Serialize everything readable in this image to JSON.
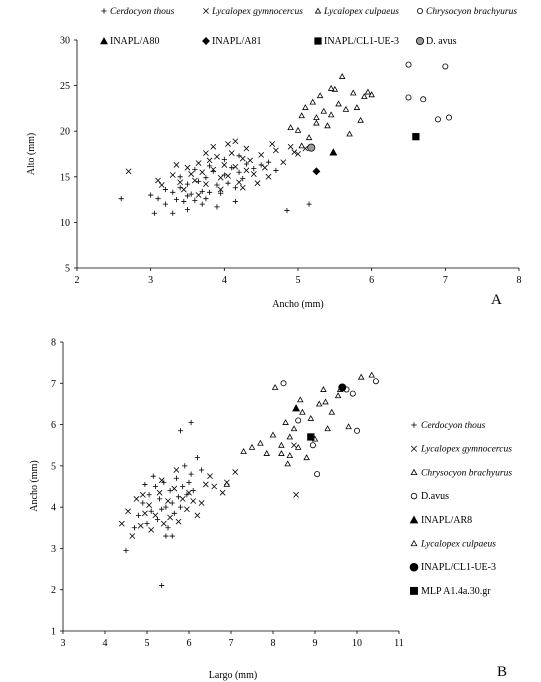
{
  "chart_data": [
    {
      "type": "scatter",
      "panel_label": "A",
      "title": "",
      "xlabel": "Ancho (mm)",
      "ylabel": "Alto (mm)",
      "xlim": [
        2,
        8
      ],
      "ylim": [
        5,
        30
      ],
      "xticks": [
        2,
        3,
        4,
        5,
        6,
        7,
        8
      ],
      "yticks": [
        5,
        10,
        15,
        20,
        25,
        30
      ],
      "grid": false,
      "legend_position": "top",
      "series": [
        {
          "name": "Cerdocyon thous",
          "marker": "plus",
          "points": [
            [
              2.6,
              12.6
            ],
            [
              3.0,
              13.0
            ],
            [
              3.05,
              11.0
            ],
            [
              3.1,
              12.6
            ],
            [
              3.2,
              12.0
            ],
            [
              3.2,
              13.6
            ],
            [
              3.3,
              11.0
            ],
            [
              3.35,
              12.5
            ],
            [
              3.4,
              13.8
            ],
            [
              3.45,
              12.3
            ],
            [
              3.5,
              11.4
            ],
            [
              3.5,
              14.2
            ],
            [
              3.55,
              13.1
            ],
            [
              3.6,
              12.4
            ],
            [
              3.65,
              14.5
            ],
            [
              3.7,
              13.4
            ],
            [
              3.7,
              12.0
            ],
            [
              3.75,
              14.9
            ],
            [
              3.8,
              13.3
            ],
            [
              3.85,
              15.6
            ],
            [
              3.9,
              14.1
            ],
            [
              3.95,
              13.2
            ],
            [
              4.0,
              15.2
            ],
            [
              4.05,
              14.3
            ],
            [
              4.1,
              16.0
            ],
            [
              4.15,
              13.8
            ],
            [
              4.2,
              15.5
            ],
            [
              4.25,
              14.8
            ],
            [
              4.3,
              16.4
            ],
            [
              3.4,
              15.0
            ],
            [
              3.6,
              15.8
            ],
            [
              3.8,
              16.2
            ],
            [
              4.0,
              16.9
            ],
            [
              4.2,
              17.3
            ],
            [
              3.9,
              11.7
            ],
            [
              4.15,
              12.3
            ],
            [
              3.3,
              13.3
            ],
            [
              3.5,
              12.9
            ],
            [
              3.75,
              12.6
            ],
            [
              4.4,
              15.9
            ],
            [
              4.5,
              16.3
            ],
            [
              4.6,
              16.6
            ],
            [
              4.7,
              15.7
            ],
            [
              4.85,
              11.3
            ],
            [
              5.15,
              12.0
            ]
          ]
        },
        {
          "name": "Lycalopex gymnocercus",
          "marker": "x",
          "points": [
            [
              2.7,
              15.6
            ],
            [
              3.1,
              14.6
            ],
            [
              3.3,
              15.2
            ],
            [
              3.4,
              14.4
            ],
            [
              3.5,
              16.0
            ],
            [
              3.55,
              15.3
            ],
            [
              3.6,
              14.6
            ],
            [
              3.65,
              16.5
            ],
            [
              3.7,
              15.5
            ],
            [
              3.75,
              14.2
            ],
            [
              3.8,
              16.8
            ],
            [
              3.85,
              15.8
            ],
            [
              3.9,
              17.2
            ],
            [
              3.95,
              14.9
            ],
            [
              4.0,
              16.3
            ],
            [
              4.05,
              15.1
            ],
            [
              4.1,
              17.6
            ],
            [
              4.15,
              16.1
            ],
            [
              4.2,
              14.4
            ],
            [
              4.25,
              17.0
            ],
            [
              4.3,
              15.7
            ],
            [
              4.35,
              16.8
            ],
            [
              4.4,
              15.3
            ],
            [
              4.5,
              17.4
            ],
            [
              4.55,
              16.0
            ],
            [
              4.6,
              15.0
            ],
            [
              4.7,
              17.9
            ],
            [
              4.8,
              16.6
            ],
            [
              4.9,
              18.3
            ],
            [
              5.0,
              17.5
            ],
            [
              5.1,
              18.1
            ],
            [
              3.45,
              13.6
            ],
            [
              3.65,
              13.0
            ],
            [
              3.95,
              13.6
            ],
            [
              4.25,
              13.8
            ],
            [
              4.45,
              14.3
            ],
            [
              3.85,
              18.3
            ],
            [
              4.05,
              18.6
            ],
            [
              4.3,
              18.1
            ],
            [
              3.35,
              16.3
            ],
            [
              3.15,
              14.1
            ],
            [
              4.65,
              18.6
            ],
            [
              4.95,
              17.7
            ],
            [
              3.75,
              17.6
            ],
            [
              4.15,
              18.9
            ]
          ]
        },
        {
          "name": "Lycalopex culpaeus",
          "marker": "triangle-open",
          "points": [
            [
              4.9,
              20.4
            ],
            [
              5.0,
              20.1
            ],
            [
              5.05,
              21.7
            ],
            [
              5.1,
              22.6
            ],
            [
              5.15,
              19.3
            ],
            [
              5.2,
              23.2
            ],
            [
              5.25,
              21.5
            ],
            [
              5.3,
              23.9
            ],
            [
              5.35,
              22.2
            ],
            [
              5.4,
              20.6
            ],
            [
              5.45,
              21.8
            ],
            [
              5.5,
              24.6
            ],
            [
              5.55,
              23.0
            ],
            [
              5.6,
              26.0
            ],
            [
              5.65,
              22.4
            ],
            [
              5.7,
              19.7
            ],
            [
              5.75,
              24.2
            ],
            [
              5.8,
              22.6
            ],
            [
              5.85,
              21.2
            ],
            [
              5.9,
              23.8
            ],
            [
              5.95,
              24.3
            ],
            [
              6.0,
              24.0
            ],
            [
              5.05,
              18.4
            ],
            [
              5.25,
              20.9
            ],
            [
              5.45,
              24.7
            ]
          ]
        },
        {
          "name": "Chrysocyon brachyurus",
          "marker": "circle-open",
          "points": [
            [
              6.5,
              27.3
            ],
            [
              7.0,
              27.1
            ],
            [
              6.5,
              23.7
            ],
            [
              6.7,
              23.5
            ],
            [
              6.9,
              21.3
            ],
            [
              7.05,
              21.5
            ]
          ]
        },
        {
          "name": "INAPL/A80",
          "marker": "triangle-filled",
          "points": [
            [
              5.48,
              17.7
            ]
          ]
        },
        {
          "name": "INAPL/A81",
          "marker": "diamond-filled",
          "points": [
            [
              5.25,
              15.6
            ]
          ]
        },
        {
          "name": "INAPL/CL1-UE-3",
          "marker": "square-filled",
          "points": [
            [
              6.6,
              19.4
            ]
          ]
        },
        {
          "name": "D. avus",
          "marker": "circle-gray",
          "points": [
            [
              5.18,
              18.2
            ]
          ]
        }
      ]
    },
    {
      "type": "scatter",
      "panel_label": "B",
      "title": "",
      "xlabel": "Largo (mm)",
      "ylabel": "Ancho (mm)",
      "xlim": [
        3,
        11
      ],
      "ylim": [
        1,
        8
      ],
      "xticks": [
        3,
        4,
        5,
        6,
        7,
        8,
        9,
        10,
        11
      ],
      "yticks": [
        1,
        2,
        3,
        4,
        5,
        6,
        7,
        8
      ],
      "grid": false,
      "legend_position": "right",
      "series": [
        {
          "name": "Cerdocyon thous",
          "marker": "plus",
          "points": [
            [
              4.5,
              2.95
            ],
            [
              4.7,
              3.5
            ],
            [
              4.8,
              3.8
            ],
            [
              4.9,
              4.1
            ],
            [
              5.0,
              3.6
            ],
            [
              5.05,
              4.3
            ],
            [
              5.1,
              3.9
            ],
            [
              5.2,
              4.5
            ],
            [
              5.25,
              3.7
            ],
            [
              5.3,
              4.2
            ],
            [
              5.35,
              3.95
            ],
            [
              5.4,
              4.6
            ],
            [
              5.45,
              4.0
            ],
            [
              5.5,
              3.5
            ],
            [
              5.55,
              4.4
            ],
            [
              5.6,
              4.1
            ],
            [
              5.65,
              3.85
            ],
            [
              5.7,
              4.7
            ],
            [
              5.75,
              4.25
            ],
            [
              5.8,
              4.0
            ],
            [
              5.85,
              4.5
            ],
            [
              5.9,
              5.0
            ],
            [
              5.95,
              4.3
            ],
            [
              6.0,
              4.6
            ],
            [
              6.05,
              4.8
            ],
            [
              6.1,
              4.4
            ],
            [
              6.2,
              5.2
            ],
            [
              6.3,
              4.9
            ],
            [
              5.35,
              2.1
            ],
            [
              5.8,
              5.85
            ],
            [
              6.05,
              6.05
            ],
            [
              5.15,
              4.75
            ],
            [
              4.95,
              4.55
            ],
            [
              5.45,
              3.3
            ],
            [
              5.6,
              3.3
            ]
          ]
        },
        {
          "name": "Lycalopex gymnocercus",
          "marker": "x",
          "points": [
            [
              4.4,
              3.6
            ],
            [
              4.55,
              3.9
            ],
            [
              4.65,
              3.3
            ],
            [
              4.75,
              4.2
            ],
            [
              4.85,
              3.55
            ],
            [
              4.95,
              3.85
            ],
            [
              5.05,
              4.05
            ],
            [
              5.1,
              3.45
            ],
            [
              5.2,
              3.8
            ],
            [
              5.3,
              4.35
            ],
            [
              5.4,
              3.6
            ],
            [
              5.5,
              4.15
            ],
            [
              5.55,
              3.75
            ],
            [
              5.65,
              4.45
            ],
            [
              5.75,
              3.65
            ],
            [
              5.85,
              4.2
            ],
            [
              5.95,
              3.95
            ],
            [
              6.0,
              4.35
            ],
            [
              6.1,
              4.15
            ],
            [
              6.2,
              3.8
            ],
            [
              6.3,
              4.1
            ],
            [
              6.4,
              4.55
            ],
            [
              6.6,
              4.5
            ],
            [
              6.8,
              4.35
            ],
            [
              7.1,
              4.85
            ],
            [
              6.5,
              4.75
            ],
            [
              5.35,
              4.65
            ],
            [
              4.9,
              4.3
            ],
            [
              5.7,
              4.9
            ],
            [
              6.9,
              4.6
            ],
            [
              8.55,
              4.3
            ],
            [
              8.5,
              5.5
            ]
          ]
        },
        {
          "name": "Chrysocyon brachyurus",
          "marker": "triangle-open",
          "points": [
            [
              7.5,
              5.45
            ],
            [
              7.7,
              5.55
            ],
            [
              7.85,
              5.3
            ],
            [
              8.0,
              5.75
            ],
            [
              8.2,
              5.5
            ],
            [
              8.3,
              6.05
            ],
            [
              8.4,
              5.25
            ],
            [
              8.5,
              5.9
            ],
            [
              8.6,
              5.45
            ],
            [
              8.7,
              6.3
            ],
            [
              8.8,
              5.2
            ],
            [
              8.9,
              6.15
            ],
            [
              9.0,
              5.65
            ],
            [
              9.1,
              6.5
            ],
            [
              9.2,
              6.85
            ],
            [
              9.3,
              5.9
            ],
            [
              9.4,
              6.3
            ],
            [
              9.6,
              6.85
            ],
            [
              9.8,
              5.95
            ],
            [
              10.1,
              7.15
            ],
            [
              10.35,
              7.2
            ],
            [
              7.3,
              5.35
            ],
            [
              6.9,
              4.55
            ],
            [
              8.05,
              6.9
            ],
            [
              8.35,
              5.05
            ]
          ]
        },
        {
          "name": "D.avus",
          "marker": "circle-open",
          "points": [
            [
              8.25,
              7.0
            ],
            [
              8.6,
              6.1
            ],
            [
              8.95,
              5.5
            ],
            [
              9.05,
              4.8
            ],
            [
              9.75,
              6.85
            ],
            [
              10.0,
              5.85
            ],
            [
              10.45,
              7.05
            ],
            [
              9.9,
              6.75
            ]
          ]
        },
        {
          "name": "INAPL/AR8",
          "marker": "triangle-filled",
          "points": [
            [
              8.55,
              6.4
            ]
          ]
        },
        {
          "name": "Lycalopex culpaeus",
          "marker": "triangle-open",
          "points": [
            [
              8.2,
              5.3
            ],
            [
              8.4,
              5.7
            ],
            [
              8.65,
              6.6
            ],
            [
              9.25,
              6.55
            ],
            [
              9.55,
              6.7
            ]
          ]
        },
        {
          "name": "INAPL/CL1-UE-3",
          "marker": "circle-filled",
          "points": [
            [
              9.65,
              6.9
            ]
          ]
        },
        {
          "name": "MLP A1.4a.30.gr",
          "marker": "square-filled",
          "points": [
            [
              8.9,
              5.7
            ]
          ]
        }
      ]
    }
  ]
}
